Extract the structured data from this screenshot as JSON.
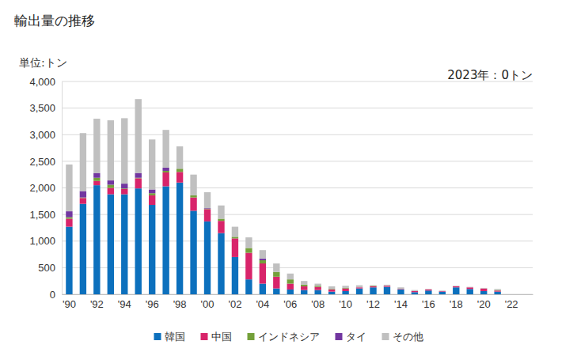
{
  "chart_data": {
    "type": "bar",
    "stacked": true,
    "grid": true,
    "legend": "bottom",
    "title": "輸出量の推移",
    "y_label": "単位:トン",
    "annotation": "2023年：0トン",
    "categories": [
      "'90",
      null,
      "'92",
      null,
      "'94",
      null,
      "'96",
      null,
      "'98",
      null,
      "'00",
      null,
      "'02",
      null,
      "'04",
      null,
      "'06",
      null,
      "'08",
      null,
      "'10",
      null,
      "'12",
      null,
      "'14",
      null,
      "'16",
      null,
      "'18",
      null,
      "'20",
      null,
      "'22",
      null
    ],
    "ylim": [
      0,
      4000
    ],
    "yticks": [
      0,
      500,
      {
        "value": 1000,
        "label": "1,000"
      },
      {
        "value": 1500,
        "label": "1,500"
      },
      {
        "value": 2000,
        "label": "2,000"
      },
      {
        "value": 2500,
        "label": "2,500"
      },
      {
        "value": 3000,
        "label": "3,000"
      },
      {
        "value": 3500,
        "label": "3,500"
      },
      {
        "value": 4000,
        "label": "4,000"
      }
    ],
    "series": [
      {
        "name": "韓国",
        "color": "#0c70bd",
        "values": [
          1270,
          1700,
          2050,
          1880,
          1880,
          1990,
          1680,
          2030,
          2100,
          1570,
          1370,
          1150,
          700,
          280,
          200,
          110,
          90,
          80,
          80,
          50,
          60,
          110,
          130,
          140,
          90,
          40,
          70,
          50,
          130,
          100,
          60,
          50,
          0,
          0
        ]
      },
      {
        "name": "中国",
        "color": "#d8246a",
        "values": [
          150,
          110,
          80,
          120,
          100,
          190,
          180,
          260,
          200,
          250,
          230,
          230,
          350,
          500,
          380,
          220,
          110,
          70,
          60,
          40,
          50,
          20,
          20,
          20,
          10,
          20,
          20,
          10,
          20,
          30,
          50,
          20,
          0,
          0
        ]
      },
      {
        "name": "インドネシア",
        "color": "#74a03a",
        "values": [
          30,
          10,
          60,
          60,
          10,
          10,
          40,
          30,
          60,
          40,
          10,
          40,
          30,
          90,
          60,
          90,
          80,
          30,
          20,
          10,
          10,
          0,
          10,
          0,
          0,
          0,
          0,
          0,
          0,
          0,
          0,
          10,
          0,
          0
        ]
      },
      {
        "name": "タイ",
        "color": "#7236a0",
        "values": [
          110,
          120,
          90,
          80,
          90,
          90,
          70,
          60,
          0,
          0,
          10,
          0,
          0,
          0,
          30,
          0,
          0,
          0,
          0,
          0,
          0,
          0,
          0,
          0,
          0,
          0,
          0,
          0,
          0,
          0,
          0,
          0,
          0,
          0
        ]
      },
      {
        "name": "その他",
        "color": "#c0c0c0",
        "values": [
          880,
          1090,
          1020,
          1130,
          1230,
          1390,
          940,
          710,
          420,
          390,
          300,
          250,
          190,
          200,
          160,
          160,
          110,
          70,
          40,
          50,
          40,
          40,
          10,
          20,
          30,
          20,
          10,
          10,
          10,
          10,
          10,
          20,
          0,
          0
        ]
      }
    ]
  }
}
